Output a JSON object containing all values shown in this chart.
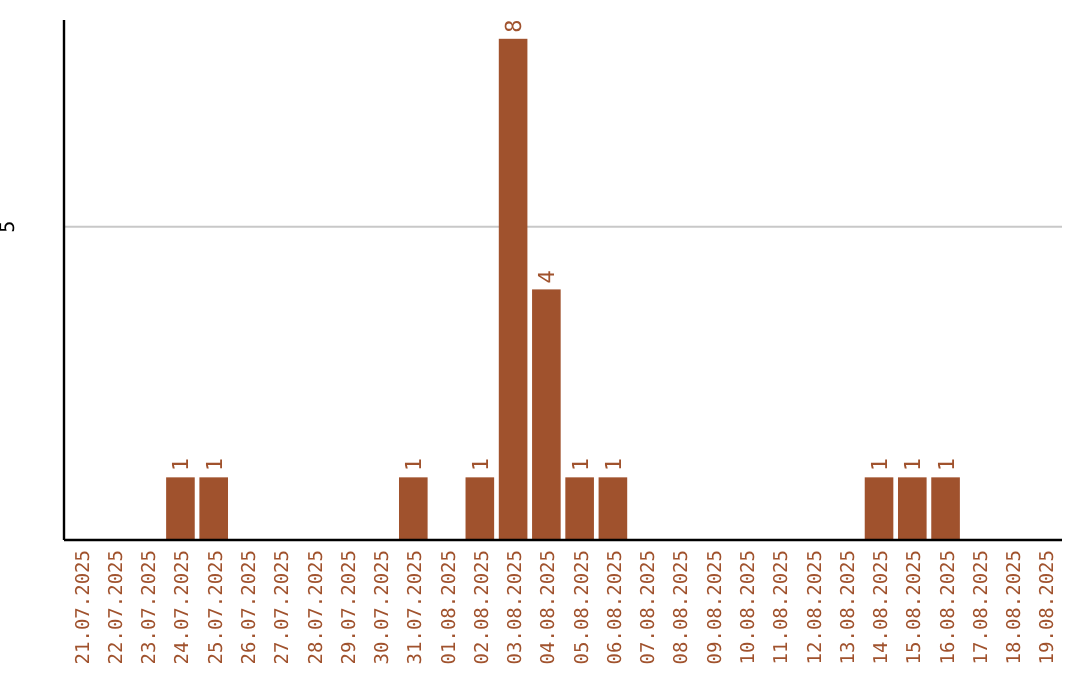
{
  "chart_data": {
    "type": "bar",
    "categories": [
      "21.07.2025",
      "22.07.2025",
      "23.07.2025",
      "24.07.2025",
      "25.07.2025",
      "26.07.2025",
      "27.07.2025",
      "28.07.2025",
      "29.07.2025",
      "30.07.2025",
      "31.07.2025",
      "01.08.2025",
      "02.08.2025",
      "03.08.2025",
      "04.08.2025",
      "05.08.2025",
      "06.08.2025",
      "07.08.2025",
      "08.08.2025",
      "09.08.2025",
      "10.08.2025",
      "11.08.2025",
      "12.08.2025",
      "13.08.2025",
      "14.08.2025",
      "15.08.2025",
      "16.08.2025",
      "17.08.2025",
      "18.08.2025",
      "19.08.2025"
    ],
    "values": [
      0,
      0,
      0,
      1,
      1,
      0,
      0,
      0,
      0,
      0,
      1,
      0,
      1,
      8,
      4,
      1,
      1,
      0,
      0,
      0,
      0,
      0,
      0,
      0,
      1,
      1,
      1,
      0,
      0,
      0
    ],
    "color": "#a0522d",
    "value_labels": [
      null,
      null,
      null,
      "1",
      "1",
      null,
      null,
      null,
      null,
      null,
      "1",
      null,
      "1",
      "8",
      "4",
      "1",
      "1",
      null,
      null,
      null,
      null,
      null,
      null,
      null,
      "1",
      "1",
      "1",
      null,
      null,
      null
    ],
    "ylim": [
      0,
      8.3
    ],
    "yticks": [
      5
    ],
    "grid": "y"
  }
}
